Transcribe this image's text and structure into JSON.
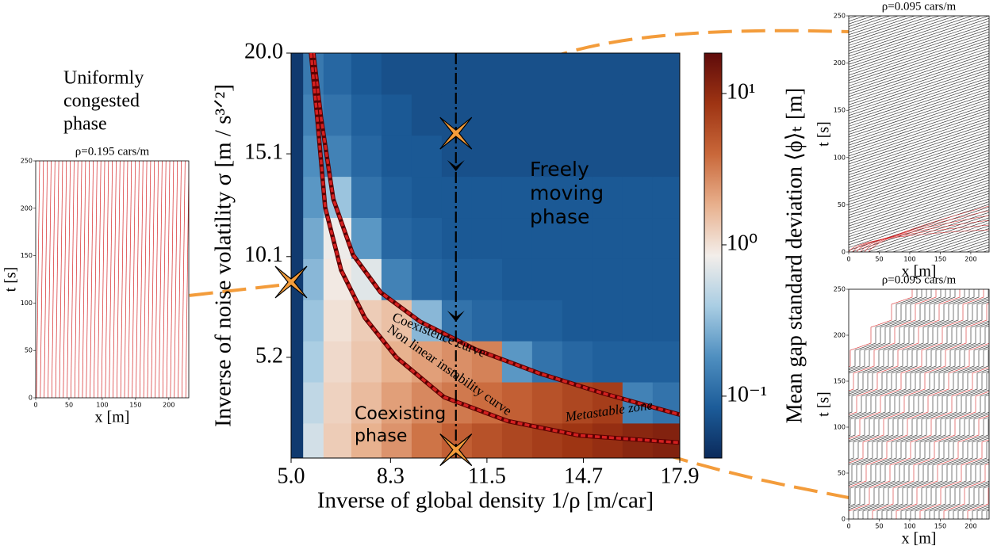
{
  "chart_data": [
    {
      "type": "heatmap",
      "xlabel": "Inverse of global density 1/ρ  [m/car]",
      "ylabel": "Inverse of noise volatility σ  [m / s³ᐟ²]",
      "xlim": [
        5.0,
        17.9
      ],
      "ylim": [
        0.3,
        20.0
      ],
      "xticks": [
        {
          "value": 5.0,
          "label": "5.0"
        },
        8.3,
        11.5,
        14.7,
        17.9
      ],
      "yticks": [
        5.2,
        10.1,
        15.1,
        {
          "value": 20.0,
          "label": "20.0"
        }
      ],
      "x": [
        5.15,
        5.65,
        6.5,
        7.5,
        8.5,
        9.5,
        10.5,
        11.5,
        12.5,
        13.5,
        14.5,
        15.5,
        16.5,
        17.5
      ],
      "y": [
        1,
        3,
        5,
        7,
        9,
        11,
        13,
        15,
        17,
        19
      ],
      "z": [
        [
          0.05,
          0.6,
          1.3,
          1.8,
          2.5,
          3.5,
          4.5,
          5.5,
          6.5,
          7.5,
          8.5,
          9.5,
          11,
          12
        ],
        [
          0.05,
          0.5,
          1.2,
          1.6,
          2.2,
          2.8,
          3.3,
          3.8,
          4.5,
          5.5,
          6.5,
          7.5,
          0.15,
          0.12
        ],
        [
          0.05,
          0.4,
          1.1,
          1.4,
          1.8,
          2.2,
          2.6,
          3.0,
          0.2,
          0.12,
          0.1,
          0.09,
          0.09,
          0.09
        ],
        [
          0.05,
          0.35,
          1.0,
          1.3,
          1.5,
          0.3,
          0.12,
          0.1,
          0.09,
          0.09,
          0.08,
          0.08,
          0.08,
          0.08
        ],
        [
          0.05,
          0.3,
          0.9,
          0.7,
          0.15,
          0.1,
          0.09,
          0.09,
          0.08,
          0.08,
          0.08,
          0.08,
          0.08,
          0.08
        ],
        [
          0.05,
          0.25,
          0.8,
          0.2,
          0.1,
          0.09,
          0.08,
          0.08,
          0.08,
          0.08,
          0.08,
          0.08,
          0.08,
          0.08
        ],
        [
          0.05,
          0.2,
          0.35,
          0.12,
          0.09,
          0.08,
          0.08,
          0.08,
          0.08,
          0.08,
          0.08,
          0.08,
          0.08,
          0.08
        ],
        [
          0.05,
          0.18,
          0.15,
          0.1,
          0.08,
          0.08,
          0.07,
          0.07,
          0.07,
          0.07,
          0.07,
          0.07,
          0.07,
          0.07
        ],
        [
          0.05,
          0.15,
          0.12,
          0.09,
          0.08,
          0.07,
          0.07,
          0.07,
          0.07,
          0.07,
          0.07,
          0.07,
          0.07,
          0.07
        ],
        [
          0.05,
          0.13,
          0.1,
          0.08,
          0.07,
          0.07,
          0.07,
          0.07,
          0.07,
          0.07,
          0.07,
          0.07,
          0.07,
          0.07
        ]
      ],
      "zscale": "log",
      "zlim": [
        0.039,
        18.5
      ],
      "colors": [
        "#0b2a5b",
        "#1c5c99",
        "#4f8fc0",
        "#a9cde3",
        "#f3eeea",
        "#e8b08d",
        "#c9683a",
        "#9e3413",
        "#5e0b0b"
      ],
      "colorbar": {
        "label": "Mean gap standard deviation ⟨ϕ⟩ₜ [m]",
        "ticks": [
          {
            "value": 0.1,
            "label": "10⁻¹"
          },
          {
            "value": 1,
            "label": "10⁰"
          },
          {
            "value": 10,
            "label": "10¹"
          }
        ]
      },
      "curves": [
        {
          "name": "Coexistence curve",
          "color": "#d42020",
          "x": [
            5.74,
            6.0,
            6.4,
            7.05,
            7.97,
            9.29,
            11.13,
            13.24,
            15.35,
            17.9
          ],
          "y": [
            20.0,
            16.8,
            12.9,
            10.2,
            8.36,
            6.93,
            5.58,
            4.42,
            3.45,
            2.41
          ]
        },
        {
          "name": "Non linear instability curve",
          "color": "#d42020",
          "x": [
            5.66,
            5.87,
            6.13,
            6.66,
            7.45,
            8.5,
            10.08,
            12.19,
            14.56,
            17.9
          ],
          "y": [
            20.0,
            16.8,
            12.5,
            9.44,
            7.12,
            5.19,
            3.26,
            2.1,
            1.4,
            1.05
          ]
        }
      ],
      "vline": 10.47,
      "markers": {
        "x": [
          10.47,
          10.47,
          5.0
        ],
        "y": [
          16.1,
          0.7,
          8.86
        ],
        "color": "#f39c3b"
      },
      "annotations": [
        {
          "text": [
            "Freely",
            "moving",
            "phase"
          ]
        },
        {
          "text": [
            "Coexisting",
            "phase"
          ]
        },
        {
          "text": [
            "Metastable zone"
          ]
        },
        {
          "text": [
            "Uniformly",
            "congested",
            "phase"
          ]
        }
      ]
    },
    {
      "type": "spacetime",
      "title": "ρ=0.195 cars/m",
      "xlabel": "x [m]",
      "ylabel": "t [s]",
      "xlim": [
        0,
        230
      ],
      "ylim": [
        0,
        250
      ],
      "xticks": [
        0,
        50,
        100,
        150,
        200
      ],
      "yticks": [
        0,
        50,
        100,
        150,
        200,
        250
      ],
      "colors": [
        "#d62728"
      ]
    },
    {
      "type": "spacetime",
      "title": "ρ=0.095 cars/m",
      "xlabel": "x [m]",
      "ylabel": "t [s]",
      "xlim": [
        0,
        230
      ],
      "ylim": [
        0,
        250
      ],
      "xticks": [
        0,
        50,
        100,
        150,
        200
      ],
      "yticks": [
        0,
        50,
        100,
        150,
        200,
        250
      ],
      "colors": [
        "#222222",
        "#d62728"
      ]
    },
    {
      "type": "spacetime",
      "title": "ρ=0.095 cars/m",
      "xlabel": "x [m]",
      "ylabel": "t [s]",
      "xlim": [
        0,
        230
      ],
      "ylim": [
        0,
        250
      ],
      "xticks": [
        0,
        50,
        100,
        150,
        200
      ],
      "yticks": [
        0,
        50,
        100,
        150,
        200,
        250
      ],
      "colors": [
        "#222222",
        "#d62728"
      ]
    }
  ]
}
